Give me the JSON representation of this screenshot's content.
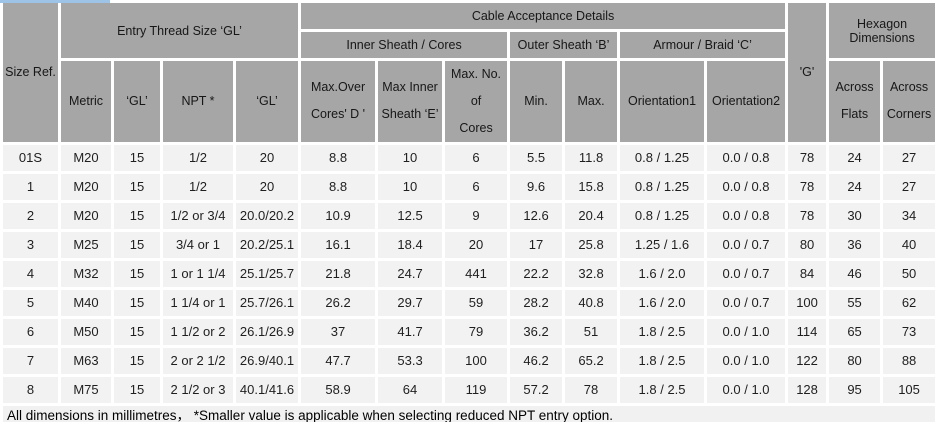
{
  "table": {
    "header": {
      "size_ref": "Size Ref.",
      "entry_thread": "Entry Thread Size ‘GL’",
      "cable_acceptance": "Cable Acceptance Details",
      "g": "'G'",
      "hexagon": "Hexagon Dimensions",
      "inner_sheath": "Inner Sheath / Cores",
      "outer_sheath": "Outer Sheath ‘B’",
      "armour": "Armour / Braid ‘C’",
      "leaf": [
        "Metric",
        "‘GL’",
        "NPT *",
        "‘GL’",
        "Max.Over\nCores' D '",
        "Max Inner\nSheath ‘E’",
        "Max. No. of\nCores",
        "Min.",
        "Max.",
        "Orientation1",
        "Orientation2",
        "Across\nFlats",
        "Across\nCorners"
      ]
    },
    "rows": [
      [
        "01S",
        "M20",
        "15",
        "1/2",
        "20",
        "8.8",
        "10",
        "6",
        "5.5",
        "11.8",
        "0.8 / 1.25",
        "0.0 / 0.8",
        "78",
        "24",
        "27"
      ],
      [
        "1",
        "M20",
        "15",
        "1/2",
        "20",
        "8.8",
        "10",
        "6",
        "9.6",
        "15.8",
        "0.8 / 1.25",
        "0.0 / 0.8",
        "78",
        "24",
        "27"
      ],
      [
        "2",
        "M20",
        "15",
        "1/2 or 3/4",
        "20.0/20.2",
        "10.9",
        "12.5",
        "9",
        "12.6",
        "20.4",
        "0.8 / 1.25",
        "0.0 / 0.8",
        "78",
        "30",
        "34"
      ],
      [
        "3",
        "M25",
        "15",
        "3/4 or 1",
        "20.2/25.1",
        "16.1",
        "18.4",
        "20",
        "17",
        "25.8",
        "1.25 / 1.6",
        "0.0 / 0.7",
        "80",
        "36",
        "40"
      ],
      [
        "4",
        "M32",
        "15",
        "1 or 1 1/4",
        "25.1/25.7",
        "21.8",
        "24.7",
        "441",
        "22.2",
        "32.8",
        "1.6 / 2.0",
        "0.0 / 0.7",
        "84",
        "46",
        "50"
      ],
      [
        "5",
        "M40",
        "15",
        "1 1/4 or 1",
        "25.7/26.1",
        "26.2",
        "29.7",
        "59",
        "28.2",
        "40.8",
        "1.6 / 2.0",
        "0.0 / 0.7",
        "100",
        "55",
        "62"
      ],
      [
        "6",
        "M50",
        "15",
        "1 1/2 or 2",
        "26.1/26.9",
        "37",
        "41.7",
        "79",
        "36.2",
        "51",
        "1.8 / 2.5",
        "0.0 / 1.0",
        "114",
        "65",
        "73"
      ],
      [
        "7",
        "M63",
        "15",
        "2 or 2 1/2",
        "26.9/40.1",
        "47.7",
        "53.3",
        "100",
        "46.2",
        "65.2",
        "1.8 / 2.5",
        "0.0 / 1.0",
        "122",
        "80",
        "88"
      ],
      [
        "8",
        "M75",
        "15",
        "2 1/2 or 3",
        "40.1/41.6",
        "58.9",
        "64",
        "119",
        "57.2",
        "78",
        "1.8 / 2.5",
        "0.0 / 1.0",
        "128",
        "95",
        "105"
      ]
    ],
    "footnote": "All dimensions in millimetres，  *Smaller value is applicable when selecting reduced NPT entry option."
  }
}
